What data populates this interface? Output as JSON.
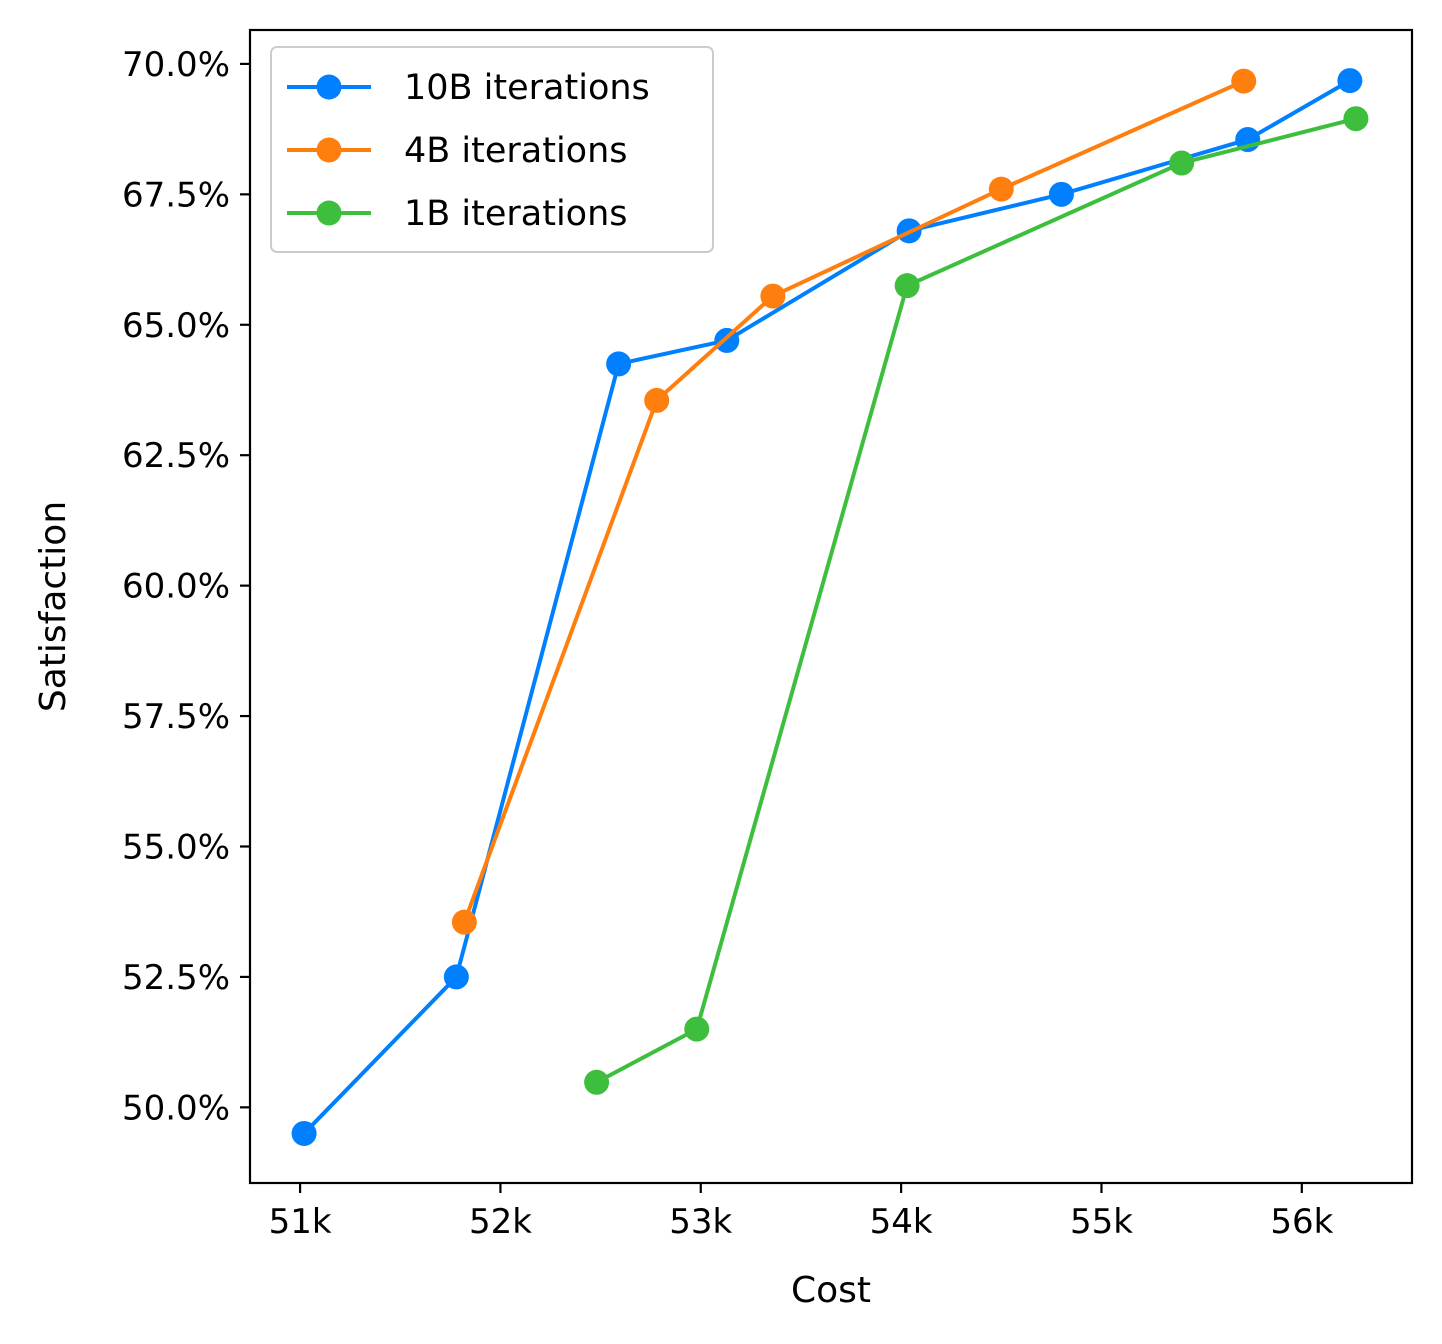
{
  "chart_data": {
    "type": "line",
    "xlabel": "Cost",
    "ylabel": "Satisfaction",
    "xlim": [
      50750,
      56550
    ],
    "ylim": [
      0.4855,
      0.7065
    ],
    "xticks": [
      51000,
      52000,
      53000,
      54000,
      55000,
      56000
    ],
    "xtick_labels": [
      "51k",
      "52k",
      "53k",
      "54k",
      "55k",
      "56k"
    ],
    "yticks": [
      0.5,
      0.525,
      0.55,
      0.575,
      0.6,
      0.625,
      0.65,
      0.675,
      0.7
    ],
    "ytick_labels": [
      "50.0%",
      "52.5%",
      "55.0%",
      "57.5%",
      "60.0%",
      "62.5%",
      "65.0%",
      "67.5%",
      "70.0%"
    ],
    "legend_position": "upper-left",
    "grid": false,
    "series": [
      {
        "name": "10B iterations",
        "color": "#0080ff",
        "x": [
          51020,
          51780,
          52590,
          53130,
          54040,
          54800,
          55730,
          56240
        ],
        "y": [
          0.495,
          0.525,
          0.6425,
          0.647,
          0.668,
          0.675,
          0.6855,
          0.6968
        ]
      },
      {
        "name": "4B iterations",
        "color": "#ff7f0e",
        "x": [
          51820,
          52780,
          53360,
          54500,
          55710
        ],
        "y": [
          0.5355,
          0.6355,
          0.6555,
          0.676,
          0.6967
        ]
      },
      {
        "name": "1B iterations",
        "color": "#3dbf3d",
        "x": [
          52480,
          52980,
          54030,
          55400,
          56270
        ],
        "y": [
          0.5048,
          0.515,
          0.6575,
          0.681,
          0.6895
        ]
      }
    ]
  }
}
